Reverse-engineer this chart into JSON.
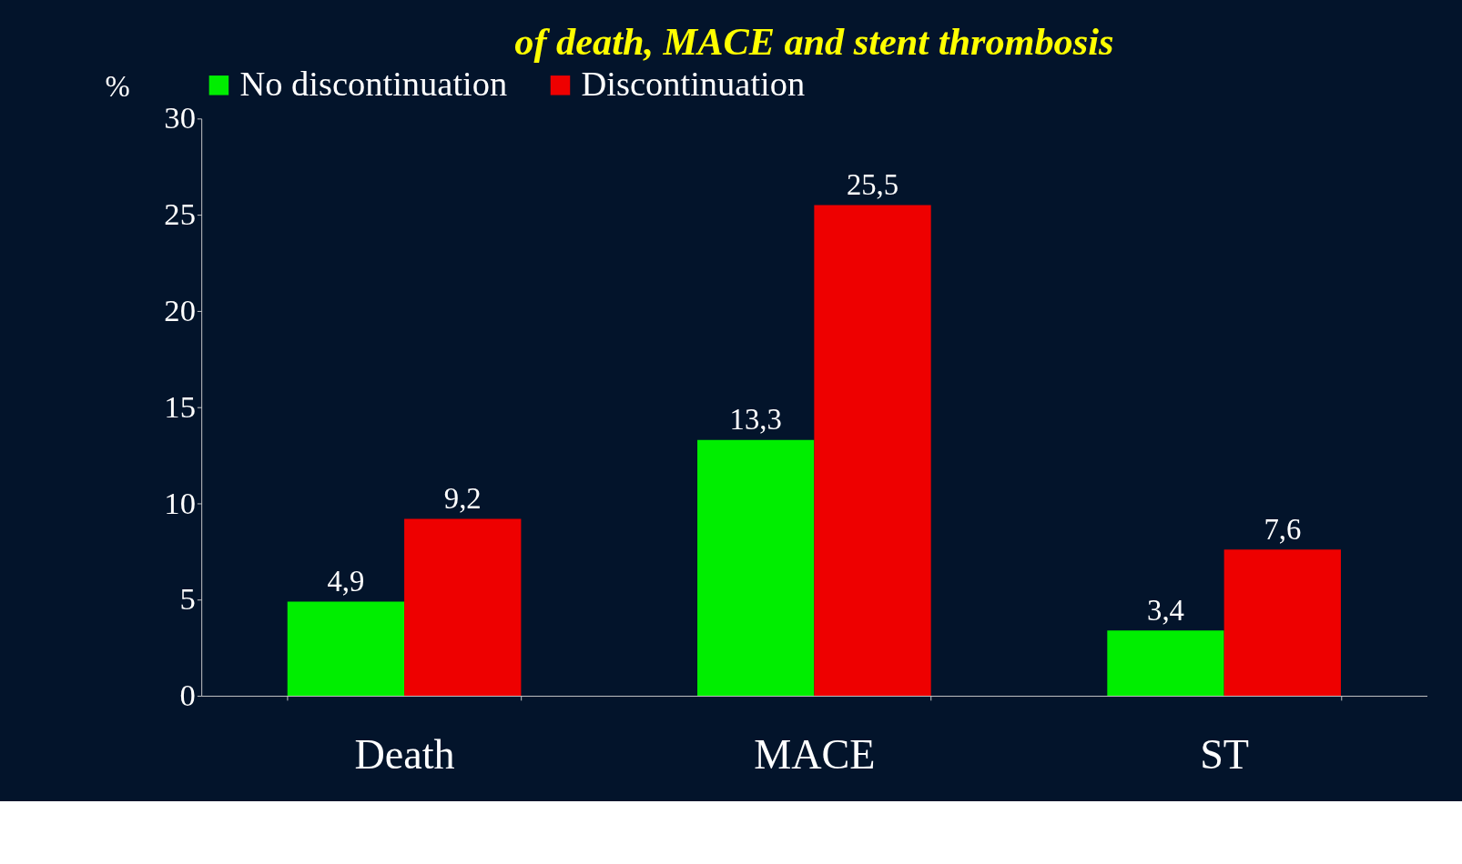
{
  "chart_data": {
    "type": "bar",
    "title": "of death, MACE and stent thrombosis",
    "ylabel": "%",
    "categories": [
      "Death",
      "MACE",
      "ST"
    ],
    "series": [
      {
        "name": "No discontinuation",
        "color": "#00ee00",
        "values": [
          4.9,
          13.3,
          3.4
        ],
        "value_labels": [
          "4,9",
          "13,3",
          "3,4"
        ]
      },
      {
        "name": "Discontinuation",
        "color": "#ee0000",
        "values": [
          9.2,
          25.5,
          7.6
        ],
        "value_labels": [
          "9,2",
          "25,5",
          "7,6"
        ]
      }
    ],
    "ylim": [
      0,
      30
    ],
    "yticks": [
      0,
      5,
      10,
      15,
      20,
      25,
      30
    ],
    "grid": false,
    "legend": "top"
  }
}
